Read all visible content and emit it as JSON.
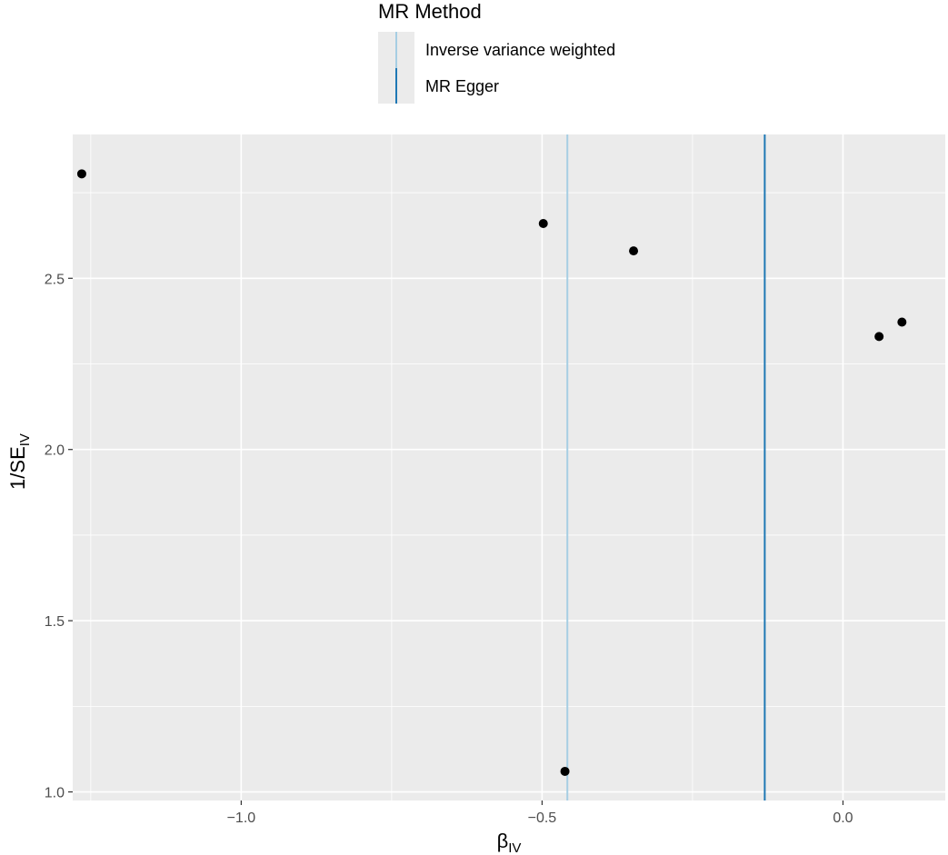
{
  "chart_data": {
    "type": "scatter",
    "xlabel": "β",
    "xlabel_sub": "IV",
    "ylabel": "1/SE",
    "ylabel_sub": "IV",
    "xlim": [
      -1.28,
      0.17
    ],
    "ylim": [
      0.975,
      2.92
    ],
    "x_ticks": [
      -1.0,
      -0.5,
      0.0
    ],
    "x_tick_labels": [
      "−1.0",
      "−0.5",
      "0.0"
    ],
    "x_minor_ticks": [
      -1.25,
      -0.75,
      -0.25
    ],
    "y_ticks": [
      1.0,
      1.5,
      2.0,
      2.5
    ],
    "y_tick_labels": [
      "1.0",
      "1.5",
      "2.0",
      "2.5"
    ],
    "y_minor_ticks": [
      1.25,
      1.75,
      2.25,
      2.75
    ],
    "grid": true,
    "points": [
      {
        "x": -1.265,
        "y": 2.805
      },
      {
        "x": -0.498,
        "y": 2.66
      },
      {
        "x": -0.348,
        "y": 2.58
      },
      {
        "x": 0.06,
        "y": 2.33
      },
      {
        "x": 0.098,
        "y": 2.372
      },
      {
        "x": -0.462,
        "y": 1.06
      }
    ],
    "vlines": [
      {
        "name": "Inverse variance weighted",
        "x": -0.458,
        "color": "#A6CEE3"
      },
      {
        "name": "MR Egger",
        "x": -0.13,
        "color": "#1F78B4"
      }
    ],
    "legend": {
      "title": "MR Method",
      "position": "top",
      "entries": [
        "Inverse variance weighted",
        "MR Egger"
      ]
    },
    "colors": {
      "panel_background": "#EBEBEB",
      "grid": "#FFFFFF",
      "points": "#000000"
    }
  }
}
